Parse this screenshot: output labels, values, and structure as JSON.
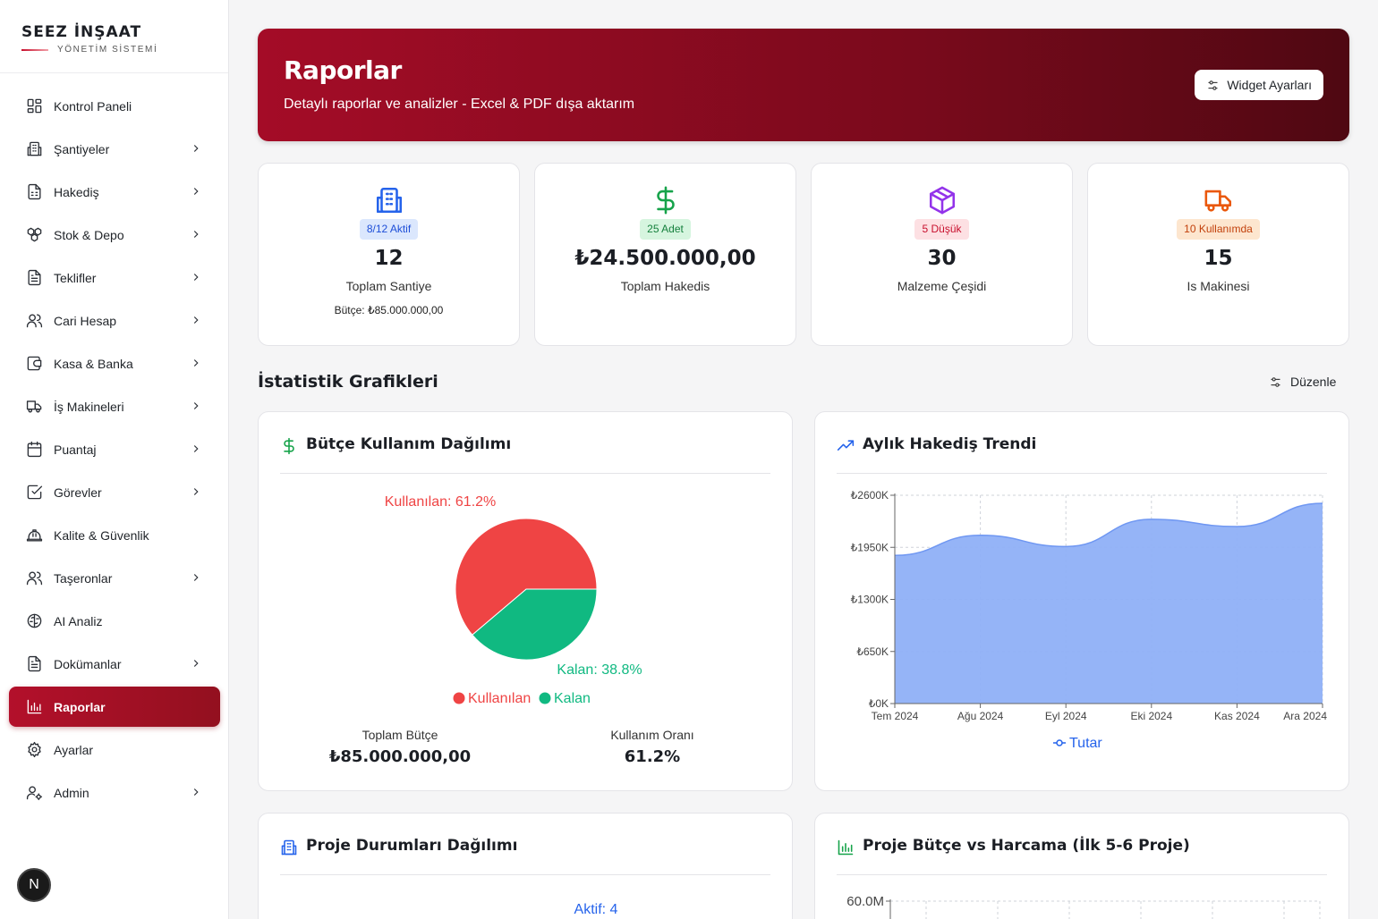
{
  "brand": {
    "title": "SEEZ İNŞAAT",
    "subtitle": "YÖNETİM SİSTEMİ"
  },
  "sidebar": {
    "items": [
      {
        "label": "Kontrol Paneli",
        "icon": "dashboard-icon",
        "chevron": false,
        "active": false
      },
      {
        "label": "Şantiyeler",
        "icon": "building-icon",
        "chevron": true,
        "active": false
      },
      {
        "label": "Hakediş",
        "icon": "spreadsheet-icon",
        "chevron": true,
        "active": false
      },
      {
        "label": "Stok & Depo",
        "icon": "boxes-icon",
        "chevron": true,
        "active": false
      },
      {
        "label": "Teklifler",
        "icon": "document-icon",
        "chevron": true,
        "active": false
      },
      {
        "label": "Cari Hesap",
        "icon": "users-icon",
        "chevron": true,
        "active": false
      },
      {
        "label": "Kasa & Banka",
        "icon": "wallet-icon",
        "chevron": true,
        "active": false
      },
      {
        "label": "İş Makineleri",
        "icon": "truck-icon",
        "chevron": true,
        "active": false
      },
      {
        "label": "Puantaj",
        "icon": "calendar-icon",
        "chevron": true,
        "active": false
      },
      {
        "label": "Görevler",
        "icon": "checkbox-icon",
        "chevron": true,
        "active": false
      },
      {
        "label": "Kalite & Güvenlik",
        "icon": "hardhat-icon",
        "chevron": false,
        "active": false
      },
      {
        "label": "Taşeronlar",
        "icon": "users-icon",
        "chevron": true,
        "active": false
      },
      {
        "label": "AI Analiz",
        "icon": "brain-icon",
        "chevron": false,
        "active": false
      },
      {
        "label": "Dokümanlar",
        "icon": "document-icon",
        "chevron": true,
        "active": false
      },
      {
        "label": "Raporlar",
        "icon": "bar-chart-icon",
        "chevron": false,
        "active": true
      },
      {
        "label": "Ayarlar",
        "icon": "gear-icon",
        "chevron": false,
        "active": false
      },
      {
        "label": "Admin",
        "icon": "user-gear-icon",
        "chevron": true,
        "active": false
      }
    ],
    "bottom_badge": "N"
  },
  "header": {
    "title": "Raporlar",
    "subtitle": "Detaylı raporlar ve analizler - Excel & PDF dışa aktarım",
    "widget_button": "Widget Ayarları"
  },
  "stats": [
    {
      "badge": "8/12 Aktif",
      "value": "12",
      "label": "Toplam Santiye",
      "extra": "Bütçe: ₺85.000.000,00",
      "color": "#2563eb",
      "badge_bg": "#dbe7fd",
      "badge_fg": "#1d4ed8",
      "icon": "building-icon"
    },
    {
      "badge": "25 Adet",
      "value": "₺24.500.000,00",
      "label": "Toplam Hakedis",
      "extra": "",
      "color": "#16a34a",
      "badge_bg": "#d6f5df",
      "badge_fg": "#15803d",
      "icon": "dollar-icon"
    },
    {
      "badge": "5 Düşük",
      "value": "30",
      "label": "Malzeme Çeşidi",
      "extra": "",
      "color": "#9333ea",
      "badge_bg": "#fde0e3",
      "badge_fg": "#c8102e",
      "icon": "package-icon"
    },
    {
      "badge": "10 Kullanımda",
      "value": "15",
      "label": "Is Makinesi",
      "extra": "",
      "color": "#ea580c",
      "badge_bg": "#fde6cf",
      "badge_fg": "#c2410c",
      "icon": "truck-icon"
    }
  ],
  "section": {
    "title": "İstatistik Grafikleri",
    "edit_button": "Düzenle"
  },
  "cards": {
    "budget_title": "Bütçe Kullanım Dağılımı",
    "trend_title": "Aylık Hakediş Trendi",
    "project_status_title": "Proje Durumları Dağılımı",
    "budget_vs_title": "Proje Bütçe vs Harcama (İlk 5-6 Proje)",
    "budget_footer": {
      "total_label": "Toplam Bütçe",
      "total_value": "₺85.000.000,00",
      "rate_label": "Kullanım Oranı",
      "rate_value": "61.2%"
    }
  },
  "chart_data": [
    {
      "type": "pie",
      "title": "Bütçe Kullanım Dağılımı",
      "labels": [
        "Kullanılan",
        "Kalan"
      ],
      "values": [
        61.2,
        38.8
      ],
      "data_labels": [
        "Kullanılan: 61.2%",
        "Kalan: 38.8%"
      ],
      "colors": [
        "#ef4444",
        "#10b981"
      ],
      "legend": "bottom"
    },
    {
      "type": "area",
      "title": "Aylık Hakediş Trendi",
      "categories": [
        "Tem 2024",
        "Ağu 2024",
        "Eyl 2024",
        "Eki 2024",
        "Kas 2024",
        "Ara 2024"
      ],
      "series": [
        {
          "name": "Tutar",
          "values": [
            1850,
            2100,
            1960,
            2300,
            2210,
            2500
          ]
        }
      ],
      "y_ticks": [
        "₺0K",
        "₺650K",
        "₺1300K",
        "₺1950K",
        "₺2600K"
      ],
      "ylim": [
        0,
        2600
      ],
      "color": "#8fb0f7",
      "legend": "bottom"
    },
    {
      "type": "pie",
      "title": "Proje Durumları Dağılımı",
      "data_labels": [
        "Aktif: 4"
      ]
    },
    {
      "type": "bar",
      "title": "Proje Bütçe vs Harcama (İlk 5-6 Proje)",
      "y_ticks": [
        "60.0M"
      ]
    }
  ]
}
